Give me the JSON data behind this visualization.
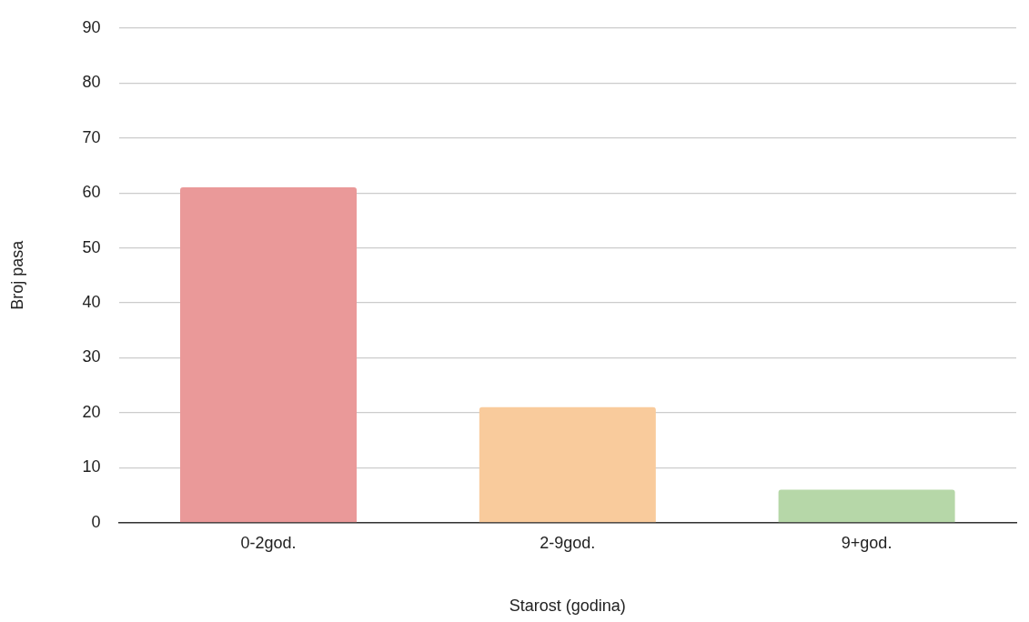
{
  "chart_data": {
    "type": "bar",
    "xlabel": "Starost (godina)",
    "ylabel": "Broj pasa",
    "categories": [
      "0-2god.",
      "2-9god.",
      "9+god."
    ],
    "values": [
      61,
      21,
      6
    ],
    "colors": [
      "#ea9999",
      "#f9cb9c",
      "#b6d7a8"
    ],
    "ylim": [
      0,
      90
    ],
    "yticks": [
      0,
      10,
      20,
      30,
      40,
      50,
      60,
      70,
      80,
      90
    ],
    "grid": "y"
  }
}
